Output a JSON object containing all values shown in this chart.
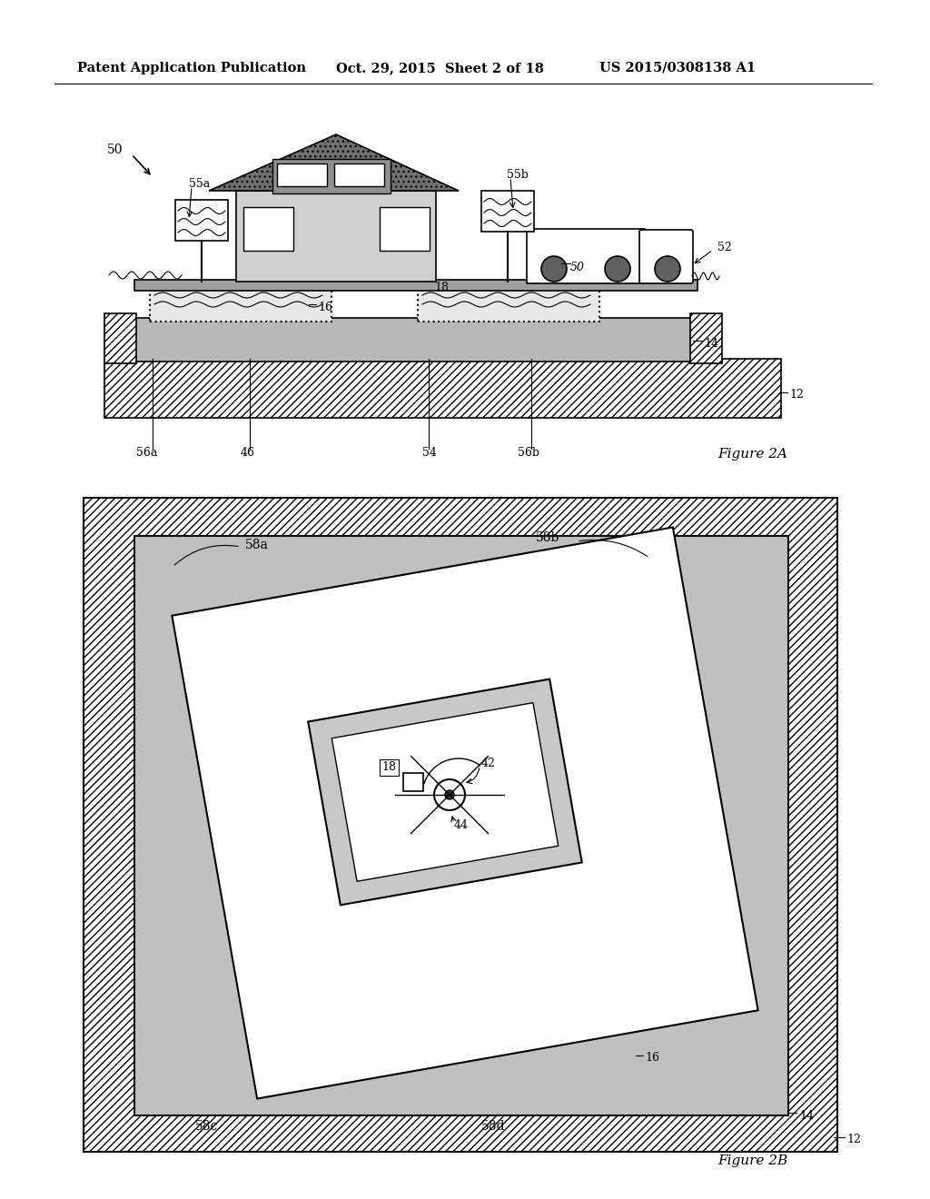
{
  "bg_color": "#ffffff",
  "header_left": "Patent Application Publication",
  "header_center": "Oct. 29, 2015  Sheet 2 of 18",
  "header_right": "US 2015/0308138 A1",
  "fig2a_label": "Figure 2A",
  "fig2b_label": "Figure 2B",
  "hatch_pattern": "////",
  "ground_hatch": "////",
  "gray_fill": "#c8c8c8",
  "dot_gray": "#b0b0b0",
  "roof_gray": "#808080"
}
